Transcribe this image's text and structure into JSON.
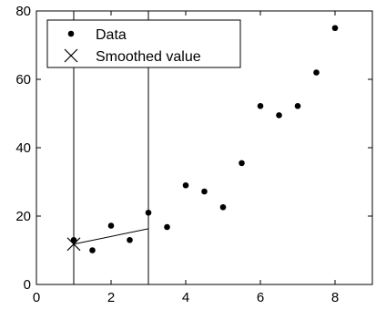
{
  "chart_data": {
    "type": "scatter",
    "title": "",
    "xlabel": "",
    "ylabel": "",
    "xlim": [
      0,
      9
    ],
    "ylim": [
      0,
      80
    ],
    "xticks": [
      0,
      2,
      4,
      6,
      8
    ],
    "yticks": [
      0,
      20,
      40,
      60,
      80
    ],
    "grid": false,
    "legend_position": "top-left",
    "series": [
      {
        "name": "Data",
        "marker": "dot",
        "color": "#000000",
        "points": [
          [
            1.0,
            13.0
          ],
          [
            1.5,
            10.0
          ],
          [
            2.0,
            17.2
          ],
          [
            2.5,
            13.0
          ],
          [
            3.0,
            21.0
          ],
          [
            3.5,
            16.8
          ],
          [
            4.0,
            29.0
          ],
          [
            4.5,
            27.2
          ],
          [
            5.0,
            22.6
          ],
          [
            5.5,
            35.5
          ],
          [
            6.0,
            52.2
          ],
          [
            6.5,
            49.5
          ],
          [
            7.0,
            52.2
          ],
          [
            7.5,
            62.0
          ],
          [
            8.0,
            75.0
          ]
        ]
      },
      {
        "name": "Smoothed value",
        "marker": "x",
        "color": "#000000",
        "points": [
          [
            1.0,
            11.8
          ]
        ]
      }
    ],
    "annotations": {
      "vertical_lines_x": [
        1.0,
        3.0
      ],
      "fit_line": [
        [
          1.0,
          11.8
        ],
        [
          3.0,
          16.3
        ]
      ]
    }
  }
}
